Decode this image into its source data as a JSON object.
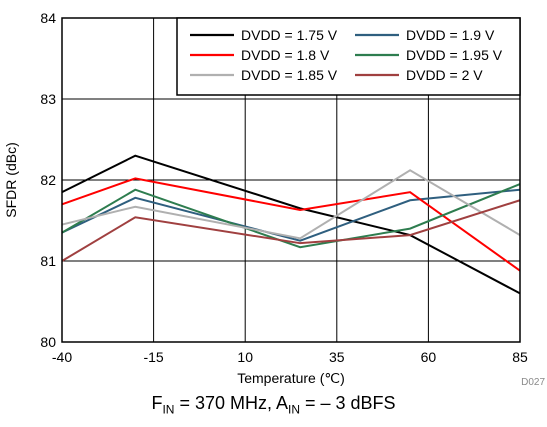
{
  "chart_data": {
    "type": "line",
    "xlabel": "Temperature (℃)",
    "ylabel": "SFDR (dBc)",
    "xlim": [
      -40,
      85
    ],
    "ylim": [
      80,
      84
    ],
    "xticks": [
      "-40",
      "-15",
      "10",
      "35",
      "60",
      "85"
    ],
    "yticks": [
      "80",
      "81",
      "82",
      "83",
      "84"
    ],
    "grid": true,
    "legend_position": "top-right",
    "figure_code": "D027",
    "x": [
      -40,
      -20,
      25,
      55,
      85
    ],
    "series": [
      {
        "name": "DVDD = 1.75 V",
        "color": "#000000",
        "values": [
          81.85,
          82.3,
          81.65,
          81.32,
          80.6
        ]
      },
      {
        "name": "DVDD = 1.9 V",
        "color": "#2f5f7f",
        "values": [
          81.35,
          81.78,
          81.25,
          81.75,
          81.88
        ]
      },
      {
        "name": "DVDD = 1.8 V",
        "color": "#ff0000",
        "values": [
          81.7,
          82.02,
          81.63,
          81.85,
          80.88
        ]
      },
      {
        "name": "DVDD = 1.95 V",
        "color": "#2e7d4f",
        "values": [
          81.35,
          81.88,
          81.17,
          81.4,
          81.95
        ]
      },
      {
        "name": "DVDD = 1.85 V",
        "color": "#b0b0b0",
        "values": [
          81.45,
          81.67,
          81.28,
          82.12,
          81.32
        ]
      },
      {
        "name": "DVDD = 2 V",
        "color": "#a04040",
        "values": [
          81.0,
          81.54,
          81.22,
          81.32,
          81.75
        ]
      }
    ]
  },
  "caption": {
    "f_main": "F",
    "f_sub": "IN",
    "f_rest": " = 370 MHz, A",
    "a_sub": "IN",
    "a_rest": " = – 3 dBFS"
  }
}
